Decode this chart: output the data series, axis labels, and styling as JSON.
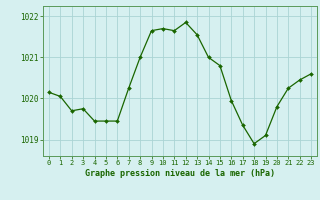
{
  "hours": [
    0,
    1,
    2,
    3,
    4,
    5,
    6,
    7,
    8,
    9,
    10,
    11,
    12,
    13,
    14,
    15,
    16,
    17,
    18,
    19,
    20,
    21,
    22,
    23
  ],
  "pressure": [
    1020.15,
    1020.05,
    1019.7,
    1019.75,
    1019.45,
    1019.45,
    1019.45,
    1020.25,
    1021.0,
    1021.65,
    1021.7,
    1021.65,
    1021.85,
    1021.55,
    1021.0,
    1020.8,
    1019.95,
    1019.35,
    1018.9,
    1019.1,
    1019.8,
    1020.25,
    1020.45,
    1020.6
  ],
  "ylim_min": 1018.6,
  "ylim_max": 1022.25,
  "yticks": [
    1019,
    1020,
    1021,
    1022
  ],
  "xticks": [
    0,
    1,
    2,
    3,
    4,
    5,
    6,
    7,
    8,
    9,
    10,
    11,
    12,
    13,
    14,
    15,
    16,
    17,
    18,
    19,
    20,
    21,
    22,
    23
  ],
  "line_color": "#1a6600",
  "marker_color": "#1a6600",
  "bg_color": "#d6f0f0",
  "grid_color": "#aad4d4",
  "title": "Graphe pression niveau de la mer (hPa)",
  "title_color": "#1a6600",
  "tick_color": "#1a6600",
  "spine_color": "#5a9a5a",
  "tick_fontsize": 5.0,
  "xlabel_fontsize": 6.0
}
